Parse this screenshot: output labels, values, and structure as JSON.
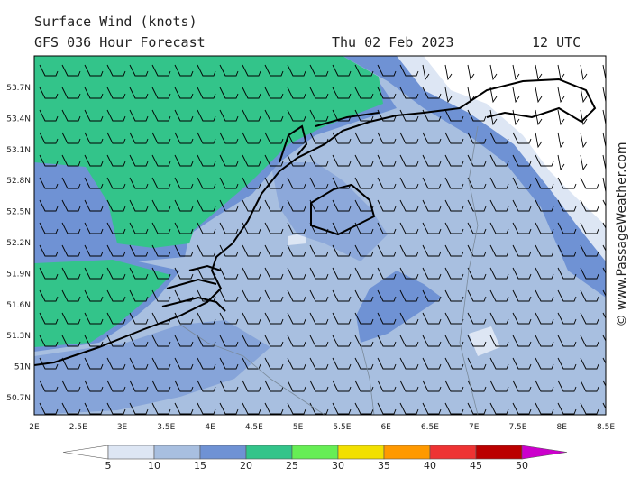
{
  "header": {
    "title": "Surface Wind (knots)",
    "subtitle": "GFS 036 Hour Forecast",
    "date": "Thu 02 Feb 2023",
    "time": "12 UTC"
  },
  "map": {
    "lat_labels": [
      "53.7N",
      "53.4N",
      "53.1N",
      "52.8N",
      "52.5N",
      "52.2N",
      "51.9N",
      "51.6N",
      "51.3N",
      "51N",
      "50.7N"
    ],
    "lon_labels": [
      "2E",
      "2.5E",
      "3E",
      "3.5E",
      "4E",
      "4.5E",
      "5E",
      "5.5E",
      "6E",
      "6.5E",
      "7E",
      "7.5E",
      "8E",
      "8.5E"
    ]
  },
  "legend": {
    "values": [
      5,
      10,
      15,
      20,
      25,
      30,
      35,
      40,
      45,
      50
    ],
    "colors": [
      "#ffffff",
      "#dde6f4",
      "#a8bfe0",
      "#6f92d4",
      "#33c48a",
      "#66ee55",
      "#f2e000",
      "#ff9900",
      "#ee3333",
      "#bb0000",
      "#cc00cc"
    ]
  },
  "credit": "© www.PassageWeather.com"
}
